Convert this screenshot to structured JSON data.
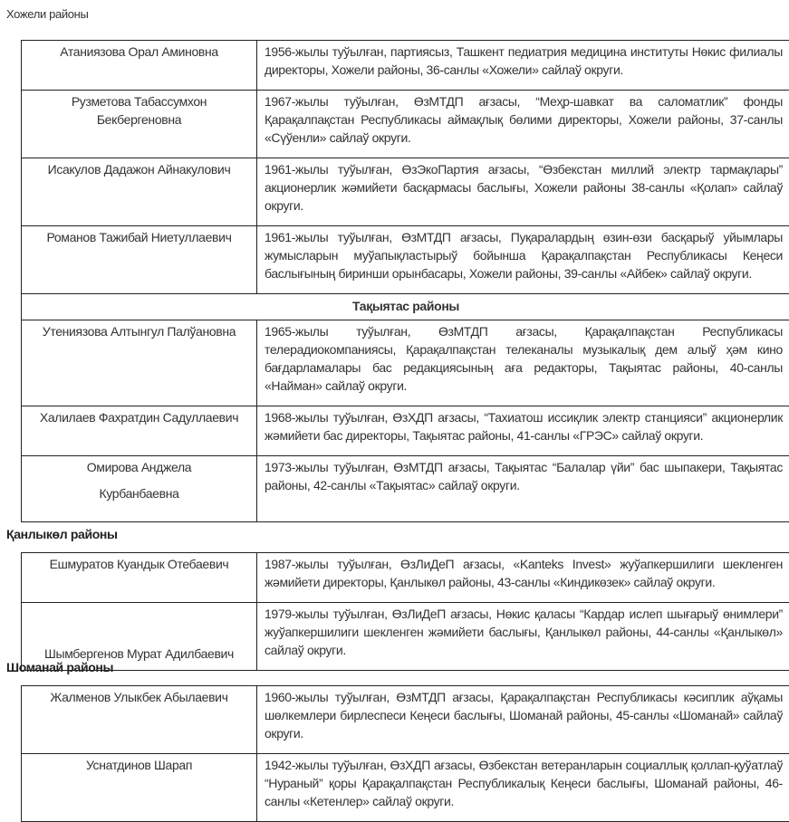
{
  "title": "Хожели районы",
  "tables": [
    {
      "rows": [
        {
          "name": "Атаниязова Орал Аминовна",
          "desc": "1956-жылы туўылған, партиясыз, Ташкент педиатрия медицина институты Нөкис филиалы директоры, Хожели районы,                      36-санлы «Хожели» сайлаў округи."
        },
        {
          "name": "Рузметова Табассумхон Бекбергеновна",
          "desc": "1967-жылы туўылған, ӨзМТДП ағзасы, “Меҳр-шавкат ва саломатлик” фонды Қарақалпақстан Республикасы аймақлық бөлими директоры, Хожели районы, 37-санлы «Сүўенли» сайлаў округи."
        },
        {
          "name": "Исакулов Дадажон Айнакулович",
          "desc": "1961-жылы туўылған, ӨзЭкоПартия ағзасы, “Өзбекстан миллий электр тармақлары” акционерлик жәмийети басқармасы баслығы, Хожели районы 38-санлы «Қолап» сайлаў округи."
        },
        {
          "name": "Романов Тажибай Ниетуллаевич",
          "desc": "1961-жылы туўылған, ӨзМТДП ағзасы, Пуқаралардың өзин-өзи басқарыў уйымлары жумысларын муўапықластырыў бойынша Қарақалпақстан Республикасы Кеңеси баслығының биринши орынбасары, Хожели районы, 39-санлы «Айбек» сайлаў округи."
        },
        {
          "section": "Тақыятас районы"
        },
        {
          "name": "Утениязова Алтынгул Палўановна",
          "desc": "1965-жылы туўылған, ӨзМТДП ағзасы, Қарақалпақстан Республикасы телерадиокомпаниясы, Қарақалпақстан телеканалы музыкалық дем алыў ҳәм кино бағдарламалары бас редакциясының аға редакторы, Тақыятас районы, 40-санлы «Найман» сайлаў округи."
        },
        {
          "name": "Халилаев Фахратдин Садуллаевич",
          "desc": "1968-жылы туўылған, ӨзХДП ағзасы, “Тахиатош иссиқлик электр станцияси” акционерлик жәмийети бас директоры, Тақыятас районы, 41-санлы «ГРЭС» сайлаў округи."
        },
        {
          "name_lines": [
            "Омирова Анджела",
            "Курбанбаевна"
          ],
          "desc": "1973-жылы туўылған, ӨзМТДП ағзасы, Тақыятас “Балалар үйи” бас шыпакери, Тақыятас районы, 42-санлы «Тақыятас» сайлаў округи."
        }
      ]
    },
    {
      "heading": "Қанлыкөл районы",
      "rows": [
        {
          "name": "Ешмуратов Куандык Отебаевич",
          "desc": "1987-жылы туўылған, ӨзЛиДеП ағзасы, «Kanteks Invest» жуўапкершилиги шекленген жәмийети директоры, Қанлыкөл районы,  43-санлы «Киндикөзек» сайлаў округи."
        },
        {
          "name": "Шымбергенов Мурат Адилбаевич",
          "bottom": true,
          "desc": "1979-жылы туўылған, ӨзЛиДеП ағзасы, Нөкис қаласы “Кардар ислеп шығарыў өнимлери” жуўапкершилиги шекленген жәмийети баслығы, Қанлыкөл районы, 44-санлы «Қанлыкөл» сайлаў округи."
        }
      ]
    },
    {
      "heading": "Шоманай районы",
      "rows": [
        {
          "name": "Жалменов Улыкбек Абылаевич",
          "desc": "1960-жылы туўылған, ӨзМТДП ағзасы, Қарақалпақстан Республикасы кәсиплик аўқамы шөлкемлери бирлеспеси Кеңеси баслығы, Шоманай районы, 45-санлы «Шоманай» сайлаў округи."
        },
        {
          "name": "Уснатдинов Шарап",
          "desc": "1942-жылы туўылған, ӨзХДП ағзасы, Өзбекстан ветеранларын социаллық қоллап-қуўатлаў “Нураный” қоры Қарақалпақстан Республикалық Кеңеси баслығы, Шоманай районы, 46-санлы «Кетенлер» сайлаў округи."
        }
      ]
    }
  ]
}
